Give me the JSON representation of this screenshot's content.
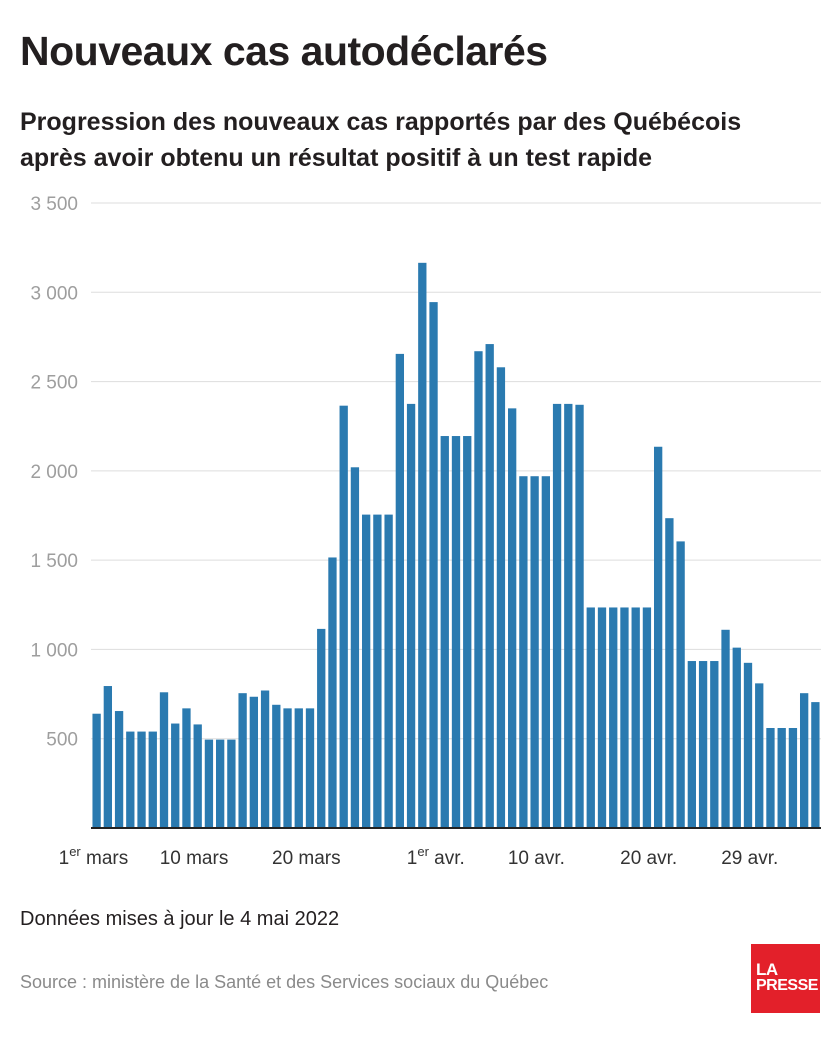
{
  "title": "Nouveaux cas autodéclarés",
  "subtitle": "Progression des nouveaux cas rapportés par des Québécois après avoir obtenu un résultat positif à un test rapide",
  "footnote": "Données mises à jour le 4 mai 2022",
  "source": "Source : ministère de la Santé et des Services sociaux du Québec",
  "logo": {
    "line1": "LA",
    "line2": "PRESSE"
  },
  "colors": {
    "bar": "#2a7ab0",
    "grid": "#dddddd",
    "axis": "#222222",
    "tick_label": "#9e9e9e",
    "logo_bg": "#e3202a"
  },
  "chart_data": {
    "type": "bar",
    "ylim": [
      0,
      3500
    ],
    "yticks": [
      {
        "value": 500,
        "label": "500"
      },
      {
        "value": 1000,
        "label": "1 000"
      },
      {
        "value": 1500,
        "label": "1 500"
      },
      {
        "value": 2000,
        "label": "2 000"
      },
      {
        "value": 2500,
        "label": "2 500"
      },
      {
        "value": 3000,
        "label": "3 000"
      },
      {
        "value": 3500,
        "label": "3 500"
      }
    ],
    "xticks": [
      {
        "index": 0,
        "label": "1",
        "sup": "er",
        "rest": " mars"
      },
      {
        "index": 9,
        "label": "10 mars",
        "sup": "",
        "rest": ""
      },
      {
        "index": 19,
        "label": "20 mars",
        "sup": "",
        "rest": ""
      },
      {
        "index": 31,
        "label": "1",
        "sup": "er",
        "rest": " avr."
      },
      {
        "index": 40,
        "label": "10 avr.",
        "sup": "",
        "rest": ""
      },
      {
        "index": 50,
        "label": "20 avr.",
        "sup": "",
        "rest": ""
      },
      {
        "index": 59,
        "label": "29 avr.",
        "sup": "",
        "rest": ""
      }
    ],
    "grid": true,
    "values": [
      640,
      795,
      655,
      540,
      540,
      540,
      760,
      585,
      670,
      580,
      495,
      495,
      495,
      755,
      735,
      770,
      690,
      670,
      670,
      670,
      1115,
      1515,
      2365,
      2020,
      1755,
      1755,
      1755,
      2655,
      2375,
      3165,
      2945,
      2195,
      2195,
      2195,
      2670,
      2710,
      2580,
      2350,
      1970,
      1970,
      1970,
      2375,
      2375,
      2370,
      1235,
      1235,
      1235,
      1235,
      1235,
      1235,
      2135,
      1735,
      1605,
      935,
      935,
      935,
      1110,
      1010,
      925,
      810,
      560,
      560,
      560,
      755,
      705
    ]
  }
}
